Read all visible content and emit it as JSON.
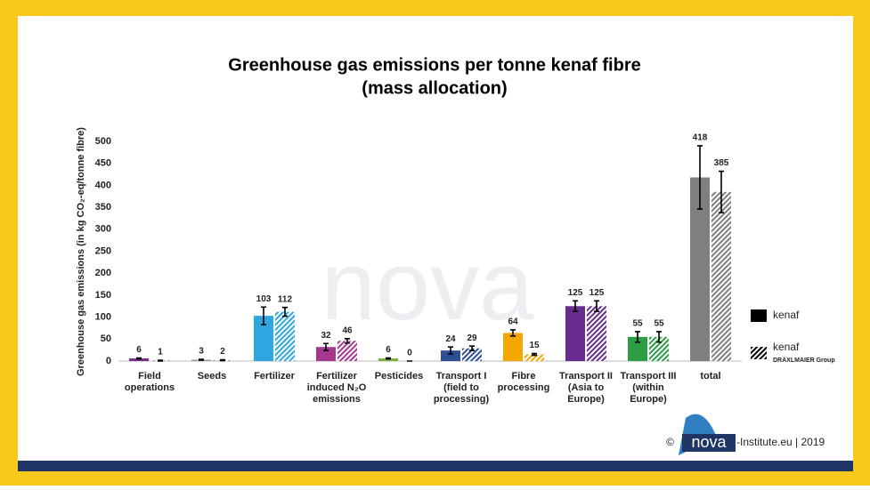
{
  "chart_data": {
    "type": "bar",
    "title": [
      "Greenhouse gas emissions per tonne kenaf fibre",
      "(mass allocation)"
    ],
    "ylabel": "Greenhouse gas emissions (in kg CO₂-eq/tonne fibre)",
    "categories": [
      [
        "Field",
        "operations"
      ],
      [
        "Seeds"
      ],
      [
        "Fertilizer"
      ],
      [
        "Fertilizer",
        "induced N₂O",
        "emissions"
      ],
      [
        "Pesticides"
      ],
      [
        "Transport I",
        "(field to",
        "processing)"
      ],
      [
        "Fibre",
        "processing"
      ],
      [
        "Transport II",
        "(Asia to",
        "Europe)"
      ],
      [
        "Transport III",
        "(within",
        "Europe)"
      ],
      [
        "total"
      ]
    ],
    "colors": [
      "#7b2e8c",
      "#9a9a9a",
      "#2ea7e0",
      "#a5378e",
      "#7cb342",
      "#2f4f94",
      "#f5a700",
      "#682c8f",
      "#2e9b45",
      "#7f7f7f"
    ],
    "series": [
      {
        "name": "kenaf",
        "pattern": "solid",
        "legend_color": "#000000",
        "values": [
          6,
          3,
          103,
          32,
          6,
          24,
          64,
          125,
          55,
          418
        ],
        "errors": [
          1,
          1,
          20,
          8,
          1,
          8,
          7,
          12,
          12,
          72
        ]
      },
      {
        "name": "kenaf",
        "name_note": "DRÄXLMAIER Group",
        "pattern": "hatched",
        "legend_color": "#000000",
        "values": [
          1,
          2,
          112,
          46,
          0,
          29,
          15,
          125,
          55,
          385
        ],
        "errors": [
          1,
          1,
          10,
          5,
          0,
          5,
          2,
          12,
          12,
          47
        ]
      }
    ],
    "ylim": [
      0,
      500
    ],
    "yticks": [
      0,
      50,
      100,
      150,
      200,
      250,
      300,
      350,
      400,
      450,
      500
    ],
    "grid": false,
    "legend": "right",
    "watermark": "nova",
    "footer": {
      "copyright": "©",
      "logo": "nova",
      "credit": "-Institute.eu | 2019"
    }
  }
}
